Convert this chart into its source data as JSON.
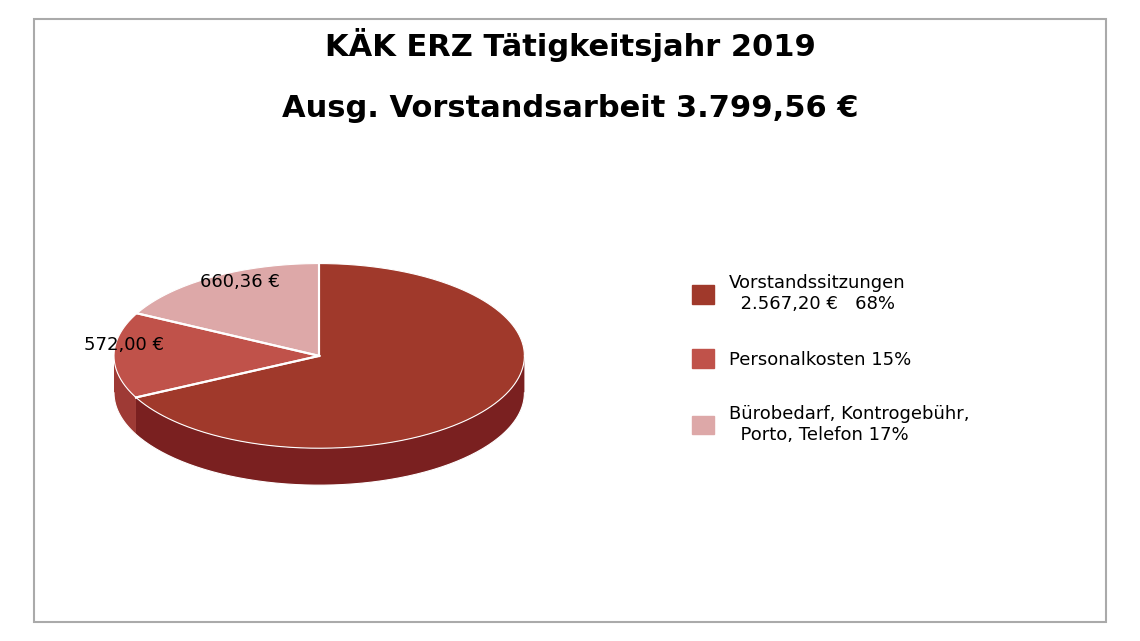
{
  "title_line1": "KÄK ERZ Tätigkeitsjahr 2019",
  "title_line2": "Ausg. Vorstandsarbeit 3.799,56 €",
  "slices": [
    2567.2,
    572.0,
    660.36
  ],
  "colors_top": [
    "#A0392B",
    "#C0524A",
    "#DDA8A8"
  ],
  "colors_side": [
    "#7A2020",
    "#9E3A35",
    "#C08080"
  ],
  "legend_labels": [
    "Vorstandssitzungen\n  2.567,20 €   68%",
    "Personalkosten 15%",
    "Bürobedarf, Kontrogebühr,\n  Porto, Telefon 17%"
  ],
  "legend_colors": [
    "#A0392B",
    "#C0524A",
    "#DDA8A8"
  ],
  "slice_label_1": "572,00 €",
  "slice_label_2": "660,36 €",
  "start_angle": 90,
  "background_color": "#FFFFFF",
  "title_fontsize": 22,
  "label_fontsize": 13,
  "legend_fontsize": 13
}
